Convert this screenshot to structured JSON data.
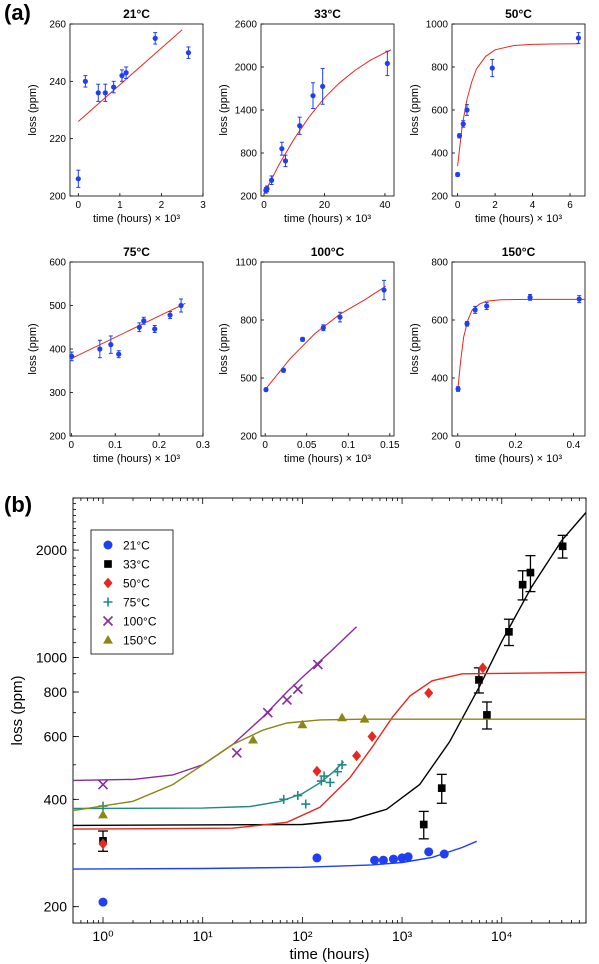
{
  "labels": {
    "a": "(a)",
    "b": "(b)"
  },
  "colors": {
    "data_blue": "#1f3ff2",
    "fit_red": "#e8281e",
    "s21": "#1f3ff2",
    "s33": "#000000",
    "s50": "#e8281e",
    "s75": "#1f8a80",
    "s100": "#8a2a9c",
    "s150": "#8c8612"
  },
  "chart_data": [
    {
      "type": "scatter",
      "title": "21°C",
      "xlabel": "time (hours) × 10³",
      "ylabel": "loss (ppm)",
      "xlim": [
        -0.2,
        3.0
      ],
      "ylim": [
        200,
        260
      ],
      "xticks": [
        0,
        1,
        2,
        3
      ],
      "yticks": [
        200,
        220,
        240,
        260
      ],
      "points": [
        {
          "x": 0.0,
          "y": 206,
          "e": 3
        },
        {
          "x": 0.17,
          "y": 240,
          "e": 2
        },
        {
          "x": 0.48,
          "y": 236,
          "e": 3
        },
        {
          "x": 0.65,
          "y": 236,
          "e": 3
        },
        {
          "x": 0.85,
          "y": 238,
          "e": 2
        },
        {
          "x": 1.05,
          "y": 242,
          "e": 2
        },
        {
          "x": 1.15,
          "y": 243,
          "e": 2
        },
        {
          "x": 1.85,
          "y": 255,
          "e": 2
        },
        {
          "x": 2.65,
          "y": 250,
          "e": 2
        }
      ],
      "fit": [
        [
          0.0,
          226
        ],
        [
          2.5,
          258
        ]
      ]
    },
    {
      "type": "scatter",
      "title": "33°C",
      "xlabel": "time (hours) × 10³",
      "ylabel": "loss (ppm)",
      "xlim": [
        -1.0,
        43.0
      ],
      "ylim": [
        200,
        2600
      ],
      "xticks": [
        0,
        20,
        40
      ],
      "yticks": [
        200,
        800,
        1400,
        2000,
        2600
      ],
      "points": [
        {
          "x": 0.6,
          "y": 280,
          "e": 40
        },
        {
          "x": 1.0,
          "y": 300,
          "e": 40
        },
        {
          "x": 2.5,
          "y": 420,
          "e": 60
        },
        {
          "x": 5.9,
          "y": 860,
          "e": 90
        },
        {
          "x": 7.1,
          "y": 690,
          "e": 80
        },
        {
          "x": 11.8,
          "y": 1180,
          "e": 120
        },
        {
          "x": 16.2,
          "y": 1600,
          "e": 180
        },
        {
          "x": 19.4,
          "y": 1730,
          "e": 250
        },
        {
          "x": 40.8,
          "y": 2050,
          "e": 170
        }
      ],
      "fit": [
        [
          0,
          230
        ],
        [
          5,
          640
        ],
        [
          10,
          1000
        ],
        [
          15,
          1310
        ],
        [
          20,
          1570
        ],
        [
          25,
          1780
        ],
        [
          30,
          1950
        ],
        [
          35,
          2090
        ],
        [
          40,
          2200
        ],
        [
          42,
          2240
        ]
      ]
    },
    {
      "type": "scatter",
      "title": "50°C",
      "xlabel": "time (hours) × 10³",
      "ylabel": "loss (ppm)",
      "xlim": [
        -0.3,
        6.8
      ],
      "ylim": [
        200,
        1000
      ],
      "xticks": [
        0,
        2,
        4,
        6
      ],
      "yticks": [
        200,
        400,
        600,
        800,
        1000
      ],
      "points": [
        {
          "x": 0.0,
          "y": 300,
          "e": 8
        },
        {
          "x": 0.1,
          "y": 480,
          "e": 10
        },
        {
          "x": 0.3,
          "y": 535,
          "e": 15
        },
        {
          "x": 0.5,
          "y": 600,
          "e": 25
        },
        {
          "x": 1.85,
          "y": 795,
          "e": 40
        },
        {
          "x": 6.45,
          "y": 935,
          "e": 25
        }
      ],
      "fit": [
        [
          0,
          340
        ],
        [
          0.25,
          530
        ],
        [
          0.5,
          650
        ],
        [
          0.75,
          730
        ],
        [
          1.0,
          790
        ],
        [
          1.5,
          850
        ],
        [
          2,
          880
        ],
        [
          3,
          900
        ],
        [
          4,
          905
        ],
        [
          5,
          907
        ],
        [
          6.5,
          908
        ]
      ]
    },
    {
      "type": "scatter",
      "title": "75°C",
      "xlabel": "time (hours) × 10³",
      "ylabel": "loss (ppm)",
      "xlim": [
        -0.003,
        0.3
      ],
      "ylim": [
        200,
        600
      ],
      "xticks": [
        0,
        0.1,
        0.2,
        0.3
      ],
      "yticks": [
        200,
        300,
        400,
        500,
        600
      ],
      "points": [
        {
          "x": 0.001,
          "y": 383,
          "e": 10
        },
        {
          "x": 0.065,
          "y": 400,
          "e": 20
        },
        {
          "x": 0.09,
          "y": 410,
          "e": 20
        },
        {
          "x": 0.108,
          "y": 388,
          "e": 8
        },
        {
          "x": 0.155,
          "y": 450,
          "e": 10
        },
        {
          "x": 0.165,
          "y": 465,
          "e": 8
        },
        {
          "x": 0.19,
          "y": 446,
          "e": 8
        },
        {
          "x": 0.225,
          "y": 478,
          "e": 8
        },
        {
          "x": 0.25,
          "y": 500,
          "e": 15
        }
      ],
      "fit": [
        [
          0.0,
          378
        ],
        [
          0.26,
          505
        ]
      ]
    },
    {
      "type": "scatter",
      "title": "100°C",
      "xlabel": "time (hours) × 10³",
      "ylabel": "loss (ppm)",
      "xlim": [
        -0.005,
        0.155
      ],
      "ylim": [
        200,
        1100
      ],
      "xticks": [
        0,
        0.05,
        0.1,
        0.15
      ],
      "yticks": [
        200,
        500,
        800,
        1100
      ],
      "points": [
        {
          "x": 0.001,
          "y": 440,
          "e": 8
        },
        {
          "x": 0.022,
          "y": 540,
          "e": 10
        },
        {
          "x": 0.045,
          "y": 700,
          "e": 10
        },
        {
          "x": 0.07,
          "y": 760,
          "e": 15
        },
        {
          "x": 0.09,
          "y": 815,
          "e": 25
        },
        {
          "x": 0.143,
          "y": 955,
          "e": 50
        }
      ],
      "fit": [
        [
          0,
          440
        ],
        [
          0.03,
          600
        ],
        [
          0.06,
          730
        ],
        [
          0.09,
          830
        ],
        [
          0.12,
          905
        ],
        [
          0.145,
          975
        ]
      ]
    },
    {
      "type": "scatter",
      "title": "150°C",
      "xlabel": "time (hours) × 10³",
      "ylabel": "loss (ppm)",
      "xlim": [
        -0.02,
        0.44
      ],
      "ylim": [
        200,
        800
      ],
      "xticks": [
        0,
        0.2,
        0.4
      ],
      "yticks": [
        200,
        400,
        600,
        800
      ],
      "points": [
        {
          "x": 0.001,
          "y": 362,
          "e": 8
        },
        {
          "x": 0.032,
          "y": 587,
          "e": 8
        },
        {
          "x": 0.06,
          "y": 635,
          "e": 12
        },
        {
          "x": 0.1,
          "y": 648,
          "e": 12
        },
        {
          "x": 0.25,
          "y": 678,
          "e": 10
        },
        {
          "x": 0.42,
          "y": 672,
          "e": 12
        }
      ],
      "fit": [
        [
          0,
          360
        ],
        [
          0.01,
          460
        ],
        [
          0.02,
          540
        ],
        [
          0.035,
          600
        ],
        [
          0.05,
          635
        ],
        [
          0.075,
          655
        ],
        [
          0.1,
          665
        ],
        [
          0.15,
          670
        ],
        [
          0.25,
          671
        ],
        [
          0.44,
          671
        ]
      ]
    },
    {
      "type": "scatter",
      "xscale": "log",
      "yscale": "log",
      "xlabel": "time (hours)",
      "ylabel": "loss (ppm)",
      "xlim": [
        0.5,
        70000
      ],
      "ylim": [
        180,
        2800
      ],
      "xticks": [
        1,
        10,
        100,
        1000,
        10000
      ],
      "xtick_labels": [
        "10⁰",
        "10¹",
        "10²",
        "10³",
        "10⁴"
      ],
      "yticks": [
        200,
        400,
        600,
        800,
        1000,
        2000
      ],
      "legend_position": "top-left",
      "series": [
        {
          "name": "21°C",
          "marker": "circle",
          "color": "#1f3ff2",
          "points": [
            [
              1,
              206
            ],
            [
              140,
              274
            ],
            [
              530,
              270
            ],
            [
              650,
              270
            ],
            [
              820,
              272
            ],
            [
              1000,
              274
            ],
            [
              1150,
              276
            ],
            [
              1850,
              285
            ],
            [
              2650,
              281
            ]
          ],
          "fit": [
            [
              0.5,
              255
            ],
            [
              10,
              256
            ],
            [
              100,
              258
            ],
            [
              500,
              262
            ],
            [
              1000,
              266
            ],
            [
              2000,
              275
            ],
            [
              4000,
              293
            ],
            [
              5600,
              305
            ]
          ]
        },
        {
          "name": "33°C",
          "marker": "square",
          "color": "#000000",
          "points": [
            [
              1,
              306,
              20
            ],
            [
              1650,
              340,
              30
            ],
            [
              2500,
              430,
              40
            ],
            [
              5900,
              865,
              70
            ],
            [
              7100,
              690,
              60
            ],
            [
              11800,
              1180,
              100
            ],
            [
              16200,
              1600,
              150
            ],
            [
              19400,
              1730,
              200
            ],
            [
              40800,
              2050,
              150
            ]
          ],
          "fit": [
            [
              0.5,
              338
            ],
            [
              100,
              340
            ],
            [
              300,
              350
            ],
            [
              700,
              375
            ],
            [
              1500,
              440
            ],
            [
              3000,
              580
            ],
            [
              6000,
              830
            ],
            [
              10000,
              1110
            ],
            [
              20000,
              1580
            ],
            [
              40000,
              2130
            ],
            [
              70000,
              2550
            ]
          ]
        },
        {
          "name": "50°C",
          "marker": "diamond",
          "color": "#e8281e",
          "points": [
            [
              1,
              300
            ],
            [
              140,
              480
            ],
            [
              350,
              530
            ],
            [
              500,
              600
            ],
            [
              1850,
              795
            ],
            [
              6450,
              935
            ]
          ],
          "fit": [
            [
              0.5,
              330
            ],
            [
              20,
              332
            ],
            [
              70,
              345
            ],
            [
              150,
              380
            ],
            [
              300,
              460
            ],
            [
              500,
              560
            ],
            [
              800,
              680
            ],
            [
              1200,
              780
            ],
            [
              2000,
              860
            ],
            [
              4000,
              900
            ],
            [
              70000,
              908
            ]
          ]
        },
        {
          "name": "75°C",
          "marker": "plus",
          "color": "#1f8a80",
          "points": [
            [
              1,
              383
            ],
            [
              65,
              400
            ],
            [
              90,
              410
            ],
            [
              108,
              388
            ],
            [
              155,
              450
            ],
            [
              165,
              465
            ],
            [
              190,
              446
            ],
            [
              225,
              478
            ],
            [
              250,
              500
            ]
          ],
          "fit": [
            [
              0.5,
              377
            ],
            [
              10,
              378
            ],
            [
              30,
              382
            ],
            [
              60,
              395
            ],
            [
              100,
              415
            ],
            [
              150,
              445
            ],
            [
              200,
              475
            ],
            [
              260,
              510
            ]
          ]
        },
        {
          "name": "100°C",
          "marker": "cross",
          "color": "#8a2a9c",
          "points": [
            [
              1,
              440
            ],
            [
              22,
              540
            ],
            [
              45,
              700
            ],
            [
              70,
              760
            ],
            [
              90,
              815
            ],
            [
              143,
              955
            ]
          ],
          "fit": [
            [
              0.5,
              452
            ],
            [
              2,
              455
            ],
            [
              5,
              468
            ],
            [
              10,
              500
            ],
            [
              20,
              570
            ],
            [
              40,
              680
            ],
            [
              70,
              800
            ],
            [
              100,
              880
            ],
            [
              200,
              1050
            ],
            [
              350,
              1220
            ]
          ]
        },
        {
          "name": "150°C",
          "marker": "triangle",
          "color": "#8c8612",
          "points": [
            [
              1,
              362
            ],
            [
              32,
              587
            ],
            [
              100,
              648
            ],
            [
              250,
              678
            ],
            [
              420,
              672
            ]
          ],
          "fit": [
            [
              0.5,
              372
            ],
            [
              2,
              395
            ],
            [
              5,
              440
            ],
            [
              10,
              500
            ],
            [
              20,
              570
            ],
            [
              40,
              625
            ],
            [
              70,
              655
            ],
            [
              150,
              668
            ],
            [
              400,
              671
            ],
            [
              700,
              671
            ],
            [
              70000,
              671
            ]
          ]
        }
      ]
    }
  ]
}
